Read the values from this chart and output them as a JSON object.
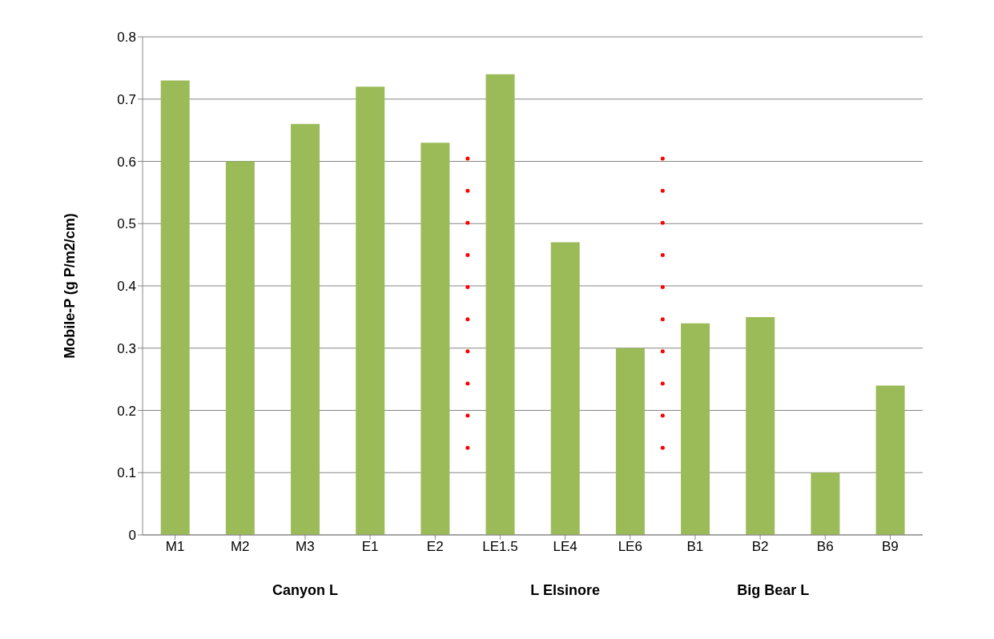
{
  "chart_data": {
    "type": "bar",
    "ylabel": "Mobile-P (g P/m2/cm)",
    "categories": [
      "M1",
      "M2",
      "M3",
      "E1",
      "E2",
      "LE1.5",
      "LE4",
      "LE6",
      "B1",
      "B2",
      "B6",
      "B9"
    ],
    "values": [
      0.73,
      0.6,
      0.66,
      0.72,
      0.63,
      0.74,
      0.47,
      0.3,
      0.34,
      0.35,
      0.1,
      0.24
    ],
    "color": "#9bbb59",
    "ylim": [
      0,
      0.8
    ],
    "yticks": [
      {
        "value": 0,
        "label": "0"
      },
      0.1,
      0.2,
      0.3,
      0.4,
      0.5,
      0.6,
      0.7,
      0.8
    ],
    "grid": "y",
    "annotations": [
      "Canyon L",
      "L Elsinore",
      "Big Bear L"
    ]
  }
}
